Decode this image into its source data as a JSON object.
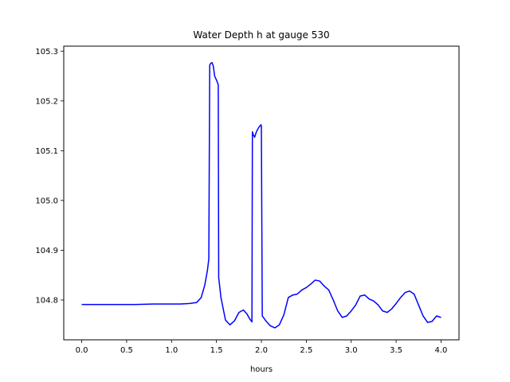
{
  "chart_data": {
    "type": "line",
    "title": "Water Depth h at gauge 530",
    "xlabel": "hours",
    "ylabel": "",
    "xlim": [
      -0.2,
      4.2
    ],
    "ylim": [
      104.72,
      105.31
    ],
    "xticks": [
      0.0,
      0.5,
      1.0,
      1.5,
      2.0,
      2.5,
      3.0,
      3.5,
      4.0
    ],
    "xtick_labels": [
      "0.0",
      "0.5",
      "1.0",
      "1.5",
      "2.0",
      "2.5",
      "3.0",
      "3.5",
      "4.0"
    ],
    "yticks": [
      104.8,
      104.9,
      105.0,
      105.1,
      105.2,
      105.3
    ],
    "ytick_labels": [
      "104.8",
      "104.9",
      "105.0",
      "105.1",
      "105.2",
      "105.3"
    ],
    "grid": false,
    "series": [
      {
        "color": "#0000ff",
        "x": [
          0.0,
          0.2,
          0.4,
          0.6,
          0.8,
          1.0,
          1.1,
          1.2,
          1.28,
          1.33,
          1.37,
          1.4,
          1.415,
          1.425,
          1.435,
          1.45,
          1.465,
          1.48,
          1.505,
          1.52,
          1.525,
          1.55,
          1.6,
          1.65,
          1.7,
          1.75,
          1.8,
          1.84,
          1.87,
          1.895,
          1.9,
          1.91,
          1.925,
          1.945,
          1.965,
          1.985,
          1.995,
          2.0,
          2.01,
          2.05,
          2.1,
          2.15,
          2.2,
          2.25,
          2.3,
          2.35,
          2.4,
          2.45,
          2.5,
          2.55,
          2.6,
          2.65,
          2.7,
          2.75,
          2.8,
          2.85,
          2.9,
          2.95,
          3.0,
          3.05,
          3.1,
          3.15,
          3.2,
          3.25,
          3.3,
          3.35,
          3.4,
          3.45,
          3.5,
          3.55,
          3.6,
          3.65,
          3.7,
          3.75,
          3.8,
          3.85,
          3.9,
          3.95,
          4.0
        ],
        "y": [
          104.791,
          104.791,
          104.791,
          104.791,
          104.792,
          104.792,
          104.792,
          104.793,
          104.795,
          104.805,
          104.83,
          104.86,
          104.883,
          105.272,
          105.275,
          105.277,
          105.27,
          105.25,
          105.24,
          105.232,
          104.845,
          104.805,
          104.76,
          104.75,
          104.758,
          104.775,
          104.78,
          104.772,
          104.762,
          104.756,
          105.138,
          105.132,
          105.127,
          105.138,
          105.145,
          105.15,
          105.152,
          105.15,
          104.768,
          104.758,
          104.748,
          104.744,
          104.75,
          104.77,
          104.805,
          104.81,
          104.812,
          104.82,
          104.825,
          104.832,
          104.84,
          104.838,
          104.828,
          104.82,
          104.8,
          104.778,
          104.765,
          104.768,
          104.778,
          104.79,
          104.808,
          104.81,
          104.802,
          104.798,
          104.79,
          104.778,
          104.775,
          104.782,
          104.793,
          104.805,
          104.815,
          104.818,
          104.812,
          104.79,
          104.768,
          104.755,
          104.757,
          104.768,
          104.765
        ]
      }
    ]
  }
}
